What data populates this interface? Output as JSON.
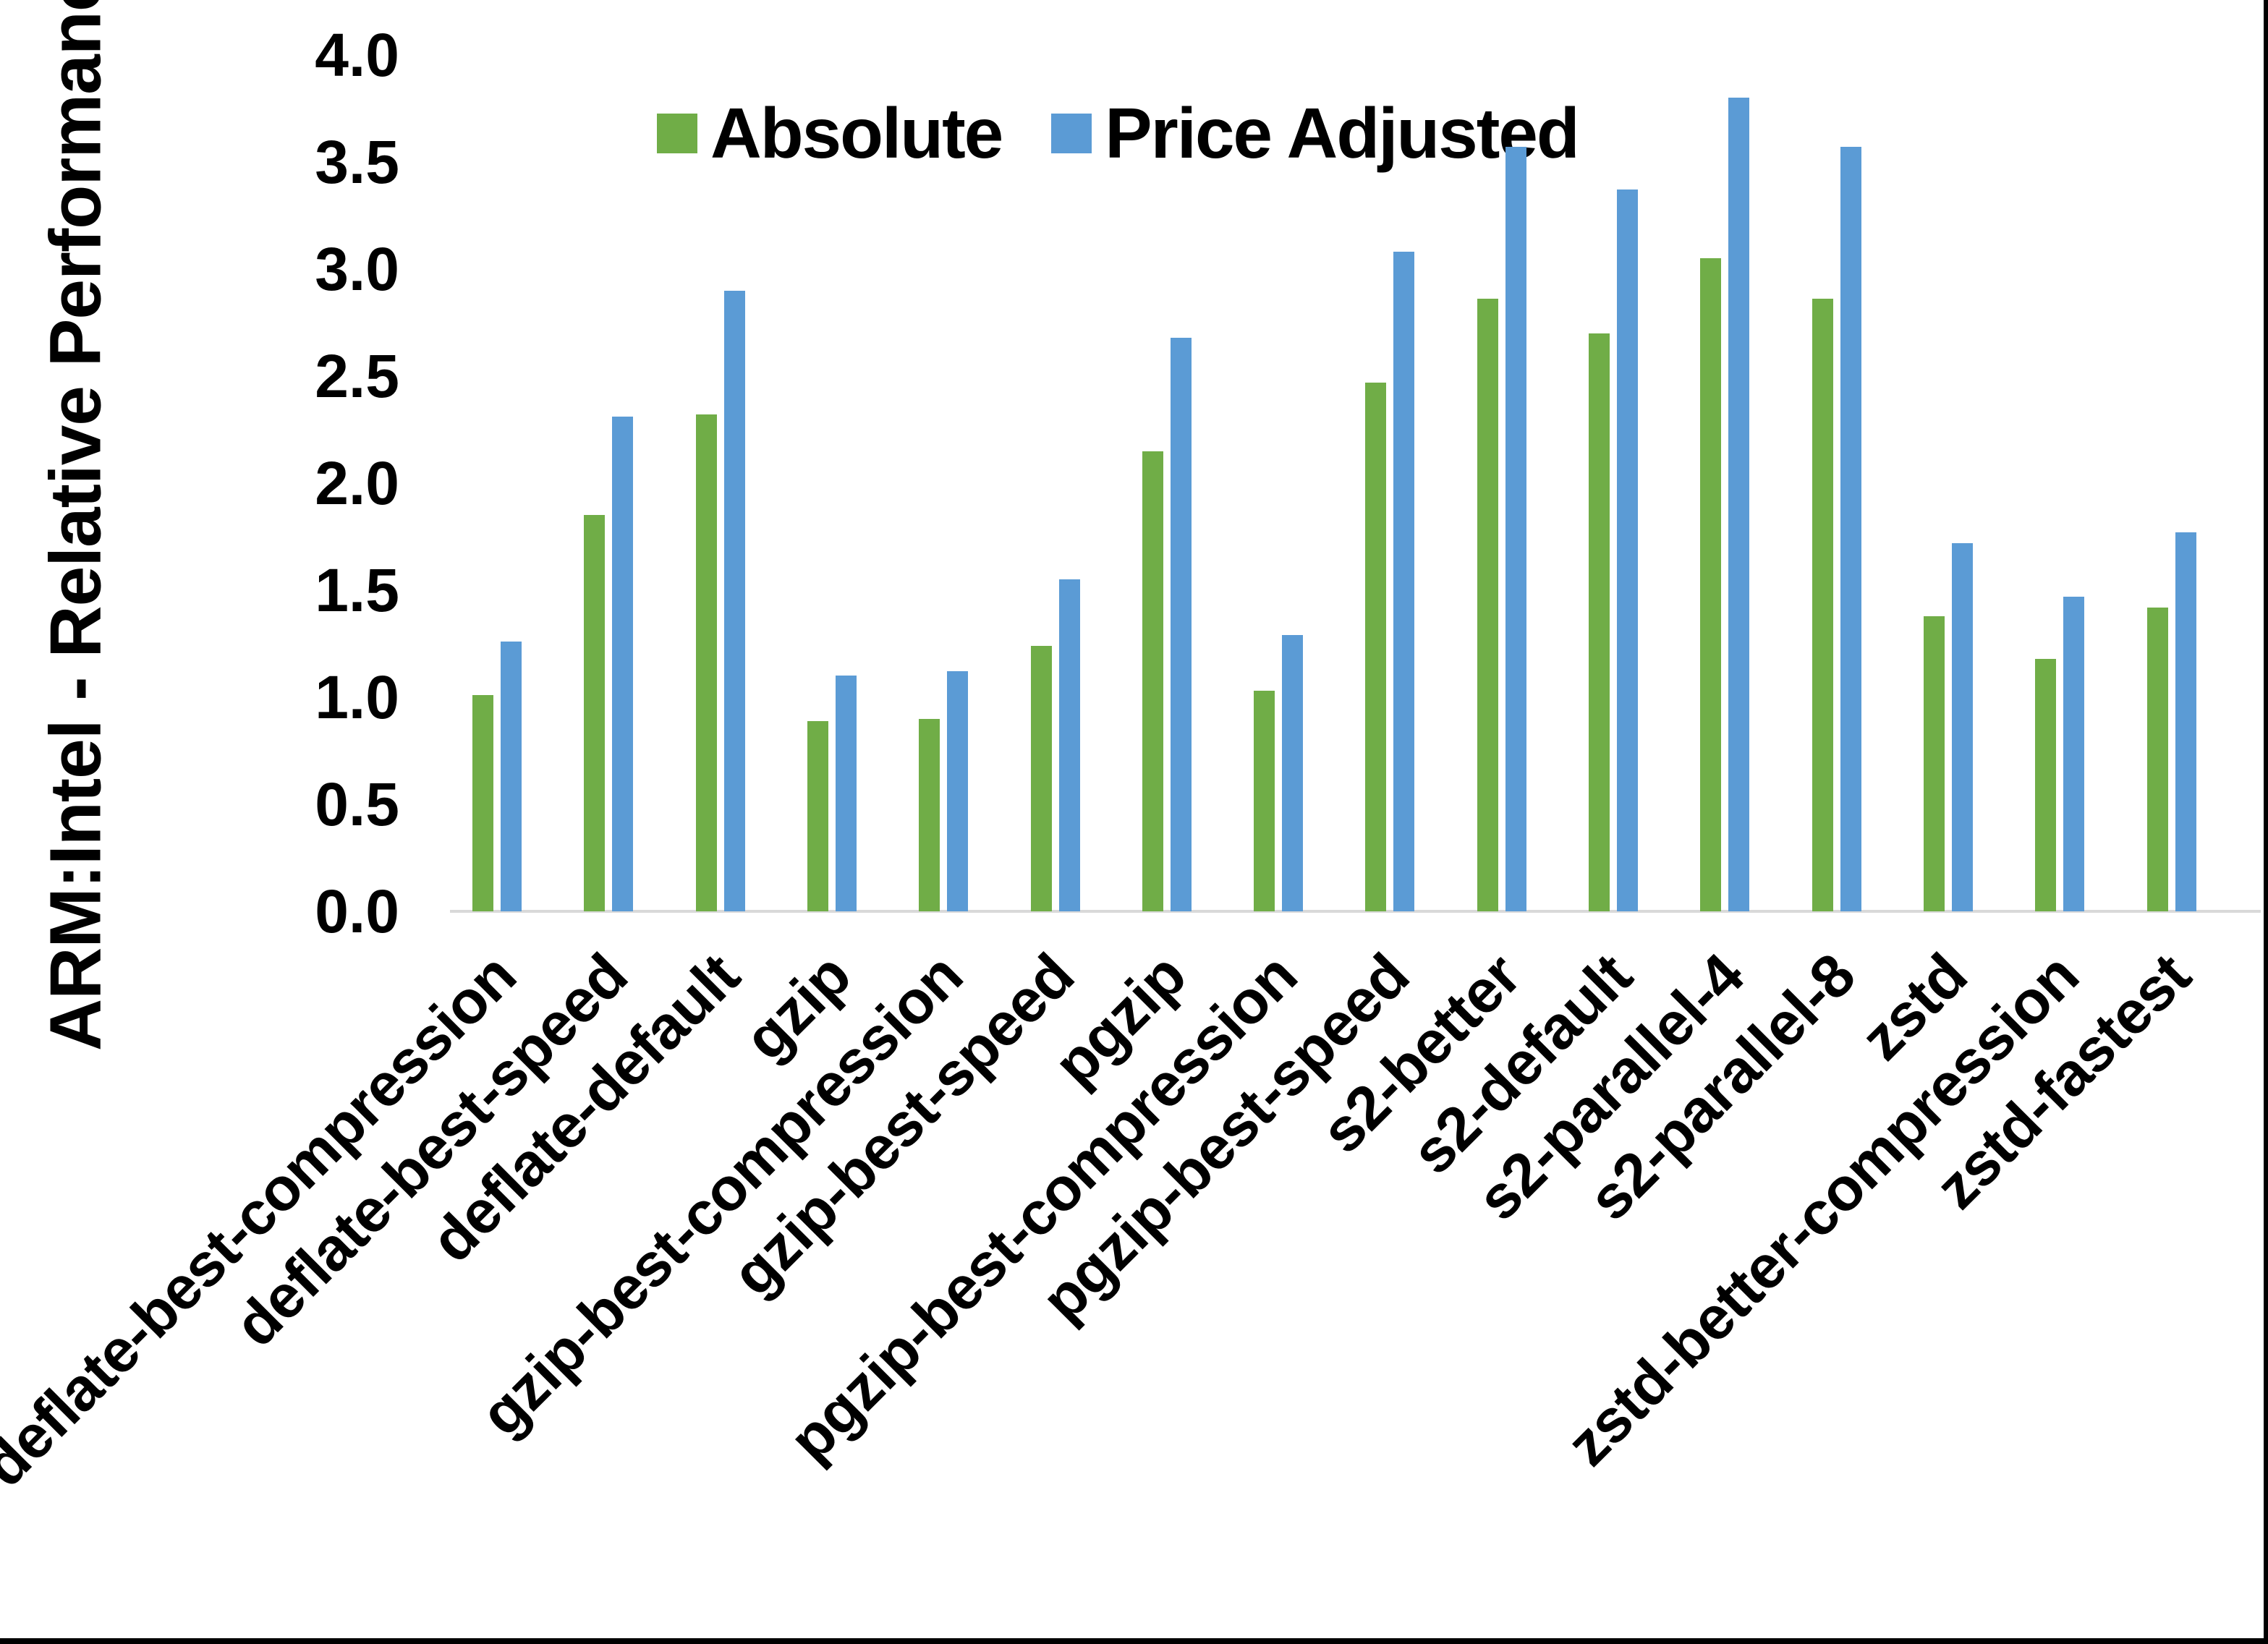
{
  "page": {
    "background": "#ffffff",
    "edge_border_color": "#000000"
  },
  "chart_data": {
    "type": "bar",
    "title": "",
    "xlabel": "",
    "ylabel": "ARM:Intel - Relative Performance",
    "ylim": [
      0.0,
      4.0
    ],
    "ytick_step": 0.5,
    "ytick_labels": [
      "0.0",
      "0.5",
      "1.0",
      "1.5",
      "2.0",
      "2.5",
      "3.0",
      "3.5",
      "4.0"
    ],
    "grid": false,
    "legend_position": "top-center",
    "axis_line_color": "#d9d9d9",
    "text_color": "#000000",
    "categories": [
      "deflate-best-compression",
      "deflate-best-speed",
      "deflate-default",
      "gzip",
      "gzip-best-compression",
      "gzip-best-speed",
      "pgzip",
      "pgzip-best-compression",
      "pgzip-best-speed",
      "s2-better",
      "s2-default",
      "s2-parallel-4",
      "s2-parallel-8",
      "zstd",
      "zstd-better-compression",
      "zstd-fastest"
    ],
    "series": [
      {
        "name": "Absolute",
        "color": "#70AD47",
        "values": [
          1.01,
          1.85,
          2.32,
          0.89,
          0.9,
          1.24,
          2.15,
          1.03,
          2.47,
          2.86,
          2.7,
          3.05,
          2.86,
          1.38,
          1.18,
          1.42
        ]
      },
      {
        "name": "Price Adjusted",
        "color": "#5B9BD5",
        "values": [
          1.26,
          2.31,
          2.9,
          1.1,
          1.12,
          1.55,
          2.68,
          1.29,
          3.08,
          3.57,
          3.37,
          3.8,
          3.57,
          1.72,
          1.47,
          1.77
        ]
      }
    ]
  }
}
